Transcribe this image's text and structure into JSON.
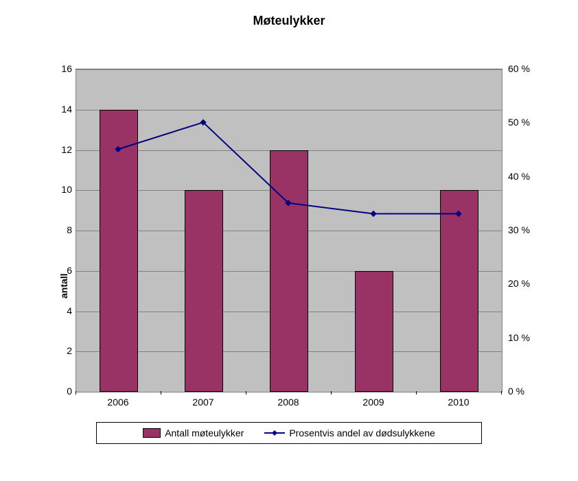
{
  "chart": {
    "type": "bar+line",
    "title": "Møteulykker",
    "title_fontsize": 18,
    "title_fontweight": "bold",
    "background_color": "#ffffff",
    "plot_background_color": "#c0c0c0",
    "grid_color": "#808080",
    "categories": [
      "2006",
      "2007",
      "2008",
      "2009",
      "2010"
    ],
    "bar_series": {
      "name": "Antall møteulykker",
      "values": [
        14,
        10,
        12,
        6,
        10
      ],
      "color": "#993366",
      "border_color": "#000000",
      "bar_width": 0.45
    },
    "line_series": {
      "name": "Prosentvis andel av dødsulykkene",
      "values": [
        45,
        50,
        35,
        33,
        33
      ],
      "color": "#000080",
      "line_width": 2,
      "marker_style": "diamond",
      "marker_size": 8
    },
    "y_left": {
      "title": "antall",
      "min": 0,
      "max": 16,
      "tick_step": 2,
      "ticks": [
        0,
        2,
        4,
        6,
        8,
        10,
        12,
        14,
        16
      ],
      "label_fontsize": 14
    },
    "y_right": {
      "min": 0,
      "max": 60,
      "tick_step": 10,
      "tick_format": "{v} %",
      "ticks": [
        0,
        10,
        20,
        30,
        40,
        50,
        60
      ],
      "label_fontsize": 14
    },
    "x_axis": {
      "label_fontsize": 14
    },
    "legend": {
      "position": "bottom",
      "border_color": "#000000",
      "fontsize": 14
    }
  }
}
